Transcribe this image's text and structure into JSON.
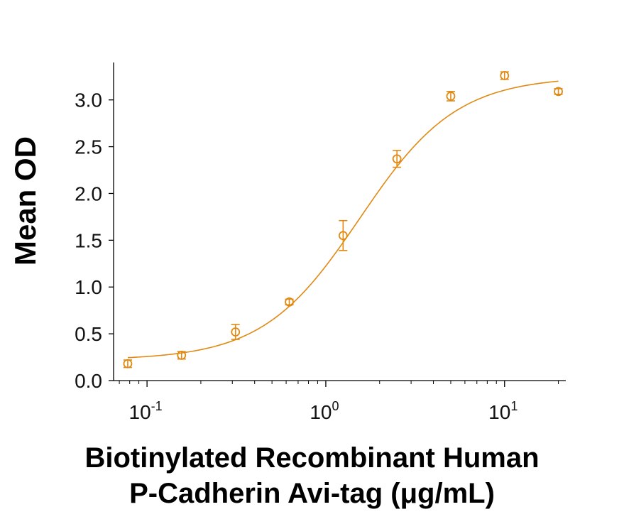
{
  "chart_data": {
    "type": "scatter",
    "title": "",
    "xlabel_lines": [
      "Biotinylated Recombinant Human",
      "P-Cadherin Avi-tag (μg/mL)"
    ],
    "ylabel": "Mean OD",
    "x_scale": "log10",
    "xlim": [
      0.065,
      22
    ],
    "ylim": [
      0,
      3.4
    ],
    "x_ticks": [
      {
        "base": "10",
        "exp": "-1",
        "value": 0.1
      },
      {
        "base": "10",
        "exp": "0",
        "value": 1
      },
      {
        "base": "10",
        "exp": "1",
        "value": 10
      }
    ],
    "y_ticks": [
      "0.0",
      "0.5",
      "1.0",
      "1.5",
      "2.0",
      "2.5",
      "3.0"
    ],
    "color": "#E08A14",
    "series": [
      {
        "x": [
          0.078,
          0.156,
          0.3125,
          0.625,
          1.25,
          2.5,
          5,
          10,
          20
        ],
        "y": [
          0.18,
          0.27,
          0.52,
          0.84,
          1.55,
          2.37,
          3.04,
          3.26,
          3.09
        ],
        "err": [
          0.04,
          0.04,
          0.08,
          0.03,
          0.16,
          0.09,
          0.05,
          0.04,
          0.03
        ]
      }
    ],
    "fit": {
      "type": "4PL",
      "bottom": 0.22,
      "top": 3.25,
      "ec50": 1.55,
      "hill": 1.6
    },
    "grid": false,
    "legend": "none"
  }
}
